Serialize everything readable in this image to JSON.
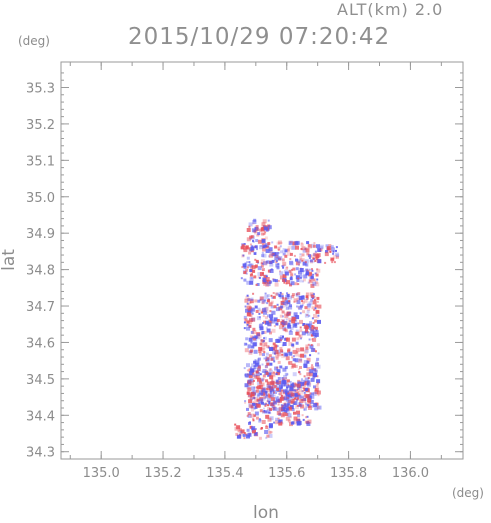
{
  "header": {
    "title": "2015/10/29 07:20:42",
    "altitude_label": "ALT(km) 2.0"
  },
  "chart_data": {
    "type": "heatmap",
    "title": "2015/10/29 07:20:42",
    "subtitle": "ALT(km) 2.0",
    "xlabel": "lon",
    "ylabel": "lat",
    "xunit": "(deg)",
    "yunit": "(deg)",
    "xlim": [
      134.87,
      136.17
    ],
    "ylim": [
      34.28,
      35.37
    ],
    "xticks": [
      135.0,
      135.2,
      135.4,
      135.6,
      135.8,
      136.0
    ],
    "yticks": [
      34.3,
      34.4,
      34.5,
      34.6,
      34.7,
      34.8,
      34.9,
      35.0,
      35.1,
      35.2,
      35.3
    ],
    "xtick_labels": [
      "135.0",
      "135.2",
      "135.4",
      "135.6",
      "135.8",
      "136.0"
    ],
    "ytick_labels": [
      "34.3",
      "34.4",
      "34.5",
      "34.6",
      "34.7",
      "34.8",
      "34.9",
      "35.0",
      "35.1",
      "35.2",
      "35.3"
    ],
    "grid": false,
    "colors": {
      "positive": "#e8505a",
      "negative": "#5a5af0",
      "axis": "#9a9a9a"
    },
    "echo_regions": [
      {
        "lon": [
          135.47,
          135.54
        ],
        "lat": [
          34.86,
          34.94
        ]
      },
      {
        "lon": [
          135.45,
          135.7
        ],
        "lat": [
          34.76,
          34.88
        ]
      },
      {
        "lon": [
          135.68,
          135.76
        ],
        "lat": [
          34.82,
          34.87
        ]
      },
      {
        "lon": [
          135.46,
          135.7
        ],
        "lat": [
          34.42,
          34.74
        ]
      },
      {
        "lon": [
          135.47,
          135.67
        ],
        "lat": [
          34.38,
          34.5
        ]
      },
      {
        "lon": [
          135.43,
          135.55
        ],
        "lat": [
          34.34,
          34.38
        ]
      }
    ]
  }
}
